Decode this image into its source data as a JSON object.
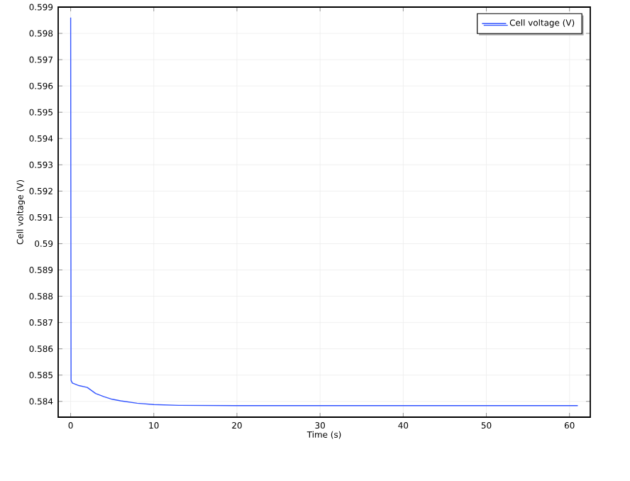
{
  "chart_data": {
    "type": "line",
    "xlabel": "Time (s)",
    "ylabel": "Cell voltage (V)",
    "xlim": [
      -1.5,
      62.5
    ],
    "ylim": [
      0.5834,
      0.599
    ],
    "xticks": [
      0,
      10,
      20,
      30,
      40,
      50,
      60
    ],
    "yticks": [
      0.584,
      0.585,
      0.586,
      0.587,
      0.588,
      0.589,
      0.59,
      0.591,
      0.592,
      0.593,
      0.594,
      0.595,
      0.596,
      0.597,
      0.598,
      0.599
    ],
    "grid": true,
    "legend": "top right",
    "series": [
      {
        "name": "Cell voltage (V)",
        "color": "#3355ff",
        "x": [
          0,
          0.05,
          0.2,
          1,
          2,
          3,
          4,
          5,
          6,
          8,
          10,
          13,
          20,
          30,
          40,
          50,
          61
        ],
        "values": [
          0.5986,
          0.5848,
          0.5847,
          0.5846,
          0.58453,
          0.5843,
          0.58418,
          0.58408,
          0.58402,
          0.58393,
          0.58388,
          0.58385,
          0.58384,
          0.58384,
          0.58384,
          0.58384,
          0.58384
        ]
      }
    ]
  }
}
